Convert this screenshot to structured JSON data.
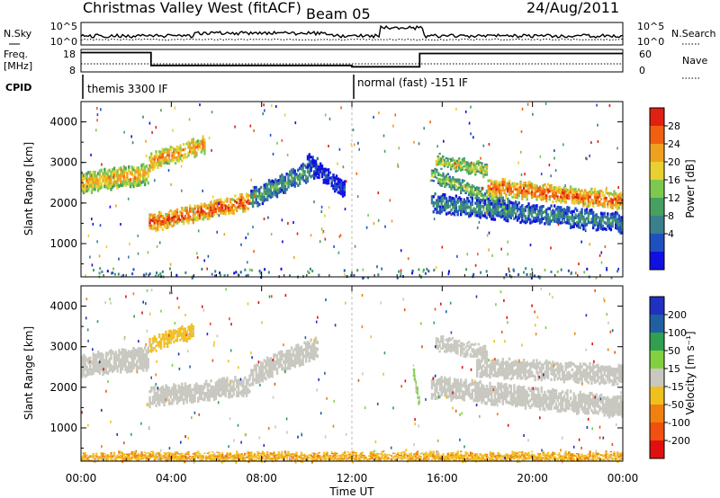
{
  "header": {
    "station": "Christmas Valley West (fitACF)",
    "beam": "Beam 05",
    "date": "24/Aug/2011"
  },
  "noise_panel": {
    "left_label": "N.Sky",
    "right_label": "N.Search",
    "left_ticks": [
      "10^5",
      "10^0"
    ],
    "right_ticks": [
      "10^5",
      "10^0"
    ]
  },
  "freq_panel": {
    "left_label_1": "Freq.",
    "left_label_2": "[MHz]",
    "right_label": "Nave",
    "left_ticks": [
      "18",
      "8"
    ],
    "right_ticks": [
      "60",
      "0"
    ],
    "freq_steps": [
      {
        "t0": 0,
        "t1": 3.1,
        "mhz": 16.6
      },
      {
        "t0": 3.1,
        "t1": 12.0,
        "mhz": 10.9
      },
      {
        "t0": 12.0,
        "t1": 15.0,
        "mhz": 10.3
      },
      {
        "t0": 15.0,
        "t1": 24.0,
        "mhz": 16.2
      }
    ]
  },
  "cpid_panel": {
    "label": "CPID",
    "segments": [
      {
        "t0": 0,
        "t1": 12.0,
        "text": "themis 3300 IF"
      },
      {
        "t0": 12.0,
        "t1": 24.0,
        "text": "normal (fast) -151 IF"
      }
    ]
  },
  "power_panel": {
    "ylabel": "Slant Range [km]",
    "y_ticks": [
      "4000",
      "3000",
      "2000",
      "1000"
    ],
    "colorbar": {
      "label": "Power [dB]",
      "ticks": [
        "28",
        "24",
        "20",
        "16",
        "12",
        "8",
        "4"
      ],
      "colors": [
        "#1010e0",
        "#2050c0",
        "#3a7f8c",
        "#47a060",
        "#7ec850",
        "#e8d030",
        "#f0a020",
        "#f06010",
        "#e02010"
      ]
    }
  },
  "velocity_panel": {
    "ylabel": "Slant Range [km]",
    "y_ticks": [
      "4000",
      "3000",
      "2000",
      "1000"
    ],
    "colorbar": {
      "label": "Velocity [m s⁻¹]",
      "ticks": [
        "200",
        "100",
        "50",
        "15",
        "-15",
        "-50",
        "-100",
        "-200"
      ],
      "colors": [
        "#2030c0",
        "#2060a0",
        "#30a050",
        "#80d040",
        "#c8c8c0",
        "#f0c020",
        "#f08010",
        "#f05010",
        "#e01010"
      ]
    }
  },
  "x_axis": {
    "label": "Time UT",
    "ticks": [
      "00:00",
      "04:00",
      "08:00",
      "12:00",
      "16:00",
      "20:00",
      "00:00"
    ]
  },
  "chart_data": {
    "type": "heatmap",
    "title": "Christmas Valley West (fitACF) Beam 05 24/Aug/2011",
    "xlabel": "Time UT",
    "ylabel": "Slant Range [km]",
    "xlim": [
      0,
      24
    ],
    "ylim": [
      180,
      4500
    ],
    "series": [
      {
        "name": "Power [dB]",
        "clim": [
          0,
          32
        ],
        "bands": [
          {
            "t0": 0.0,
            "t1": 3.0,
            "r_start": 2500,
            "r_end": 2700,
            "width": 500,
            "value": 24
          },
          {
            "t0": 3.0,
            "t1": 5.5,
            "r_start": 3000,
            "r_end": 3450,
            "width": 400,
            "value": 26
          },
          {
            "t0": 3.0,
            "t1": 7.5,
            "r_start": 1500,
            "r_end": 2050,
            "width": 400,
            "value": 29
          },
          {
            "t0": 7.5,
            "t1": 10.5,
            "r_start": 2100,
            "r_end": 2900,
            "width": 450,
            "value": 14
          },
          {
            "t0": 10.0,
            "t1": 11.7,
            "r_start": 3000,
            "r_end": 2300,
            "width": 400,
            "value": 6
          },
          {
            "t0": 15.5,
            "t1": 19.0,
            "r_start": 2700,
            "r_end": 1900,
            "width": 300,
            "value": 18
          },
          {
            "t0": 15.5,
            "t1": 24.0,
            "r_start": 2000,
            "r_end": 1500,
            "width": 450,
            "value": 12
          },
          {
            "t0": 18.0,
            "t1": 24.0,
            "r_start": 2400,
            "r_end": 2050,
            "width": 400,
            "value": 28
          },
          {
            "t0": 15.7,
            "t1": 18.0,
            "r_start": 3050,
            "r_end": 2800,
            "width": 300,
            "value": 20
          }
        ]
      },
      {
        "name": "Velocity [m s⁻¹]",
        "clim": [
          -200,
          200
        ],
        "bands": [
          {
            "t0": 0.0,
            "t1": 3.0,
            "r_start": 2550,
            "r_end": 2700,
            "width": 550,
            "value": 0
          },
          {
            "t0": 3.0,
            "t1": 7.5,
            "r_start": 1750,
            "r_end": 2050,
            "width": 450,
            "value": 0
          },
          {
            "t0": 3.0,
            "t1": 5.0,
            "r_start": 3050,
            "r_end": 3400,
            "width": 350,
            "value": -40
          },
          {
            "t0": 7.5,
            "t1": 10.5,
            "r_start": 2300,
            "r_end": 3000,
            "width": 500,
            "value": 0
          },
          {
            "t0": 14.7,
            "t1": 15.0,
            "r_start": 2400,
            "r_end": 1500,
            "width": 300,
            "value": 30
          },
          {
            "t0": 15.5,
            "t1": 24.0,
            "r_start": 2000,
            "r_end": 1500,
            "width": 500,
            "value": 0
          },
          {
            "t0": 17.5,
            "t1": 24.0,
            "r_start": 2500,
            "r_end": 2300,
            "width": 450,
            "value": 0
          },
          {
            "t0": 15.7,
            "t1": 18.0,
            "r_start": 3100,
            "r_end": 2800,
            "width": 350,
            "value": 0
          },
          {
            "t0": 0.0,
            "t1": 24.0,
            "r_start": 280,
            "r_end": 280,
            "width": 200,
            "value": -60
          }
        ]
      }
    ]
  }
}
